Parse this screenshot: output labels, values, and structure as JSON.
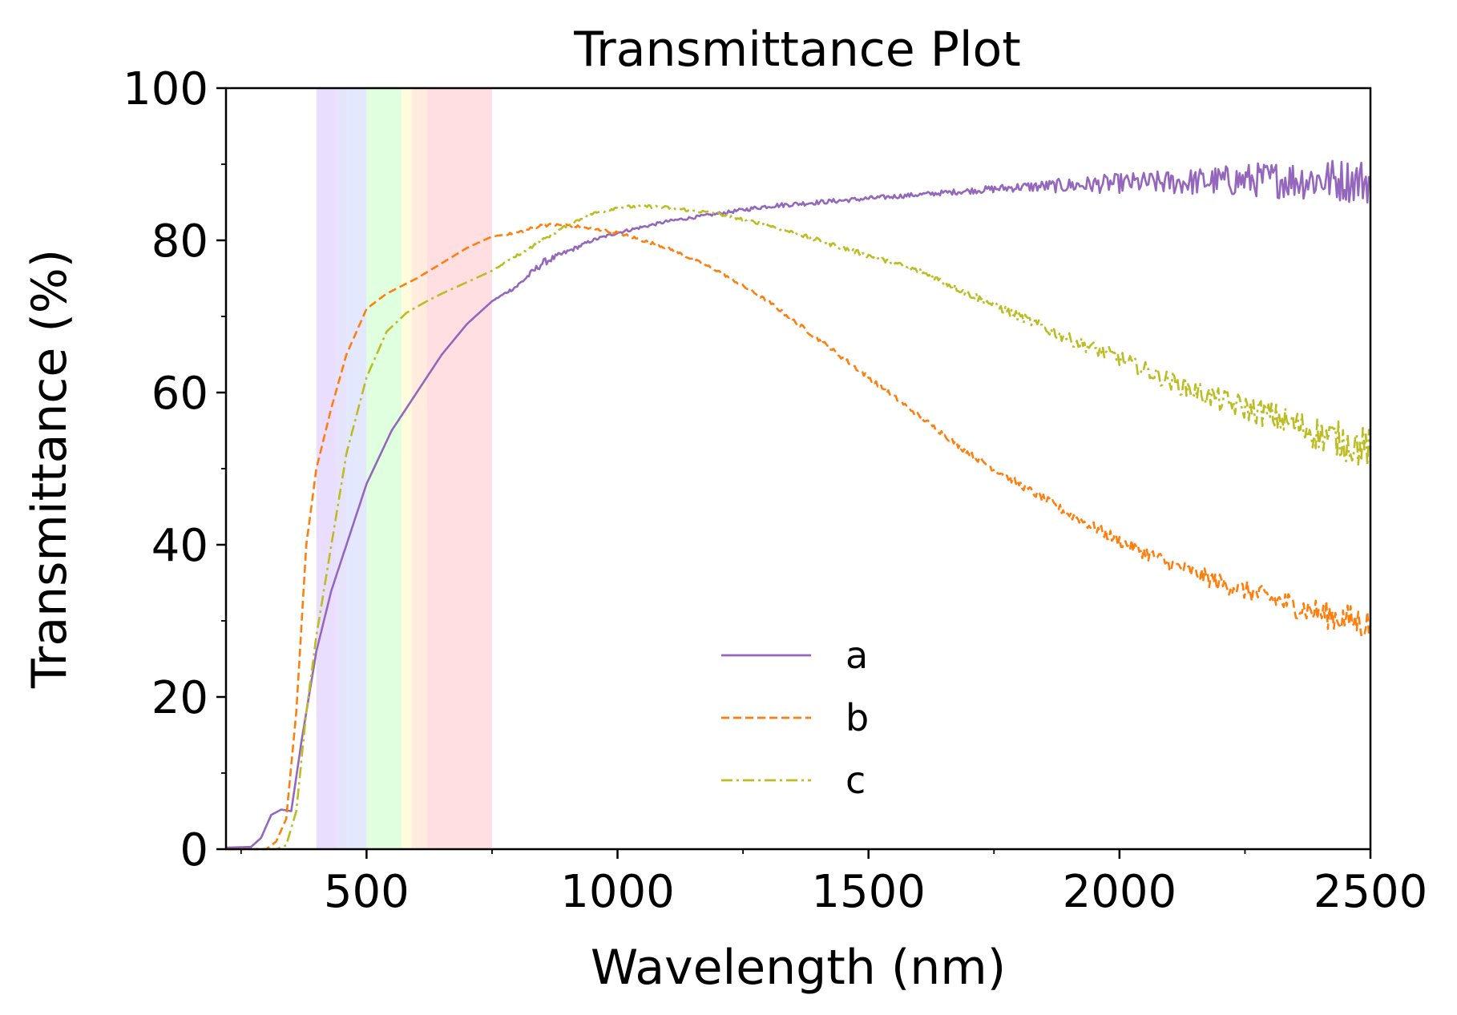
{
  "chart_data": {
    "type": "line",
    "title": "Transmittance Plot",
    "xlabel": "Wavelength (nm)",
    "ylabel": "Transmittance (%)",
    "xlim": [
      220,
      2500
    ],
    "ylim": [
      0,
      100
    ],
    "xticks": [
      500,
      1000,
      1500,
      2000,
      2500
    ],
    "xtick_labels": [
      "500",
      "1000",
      "1500",
      "2000",
      "2500"
    ],
    "yticks": [
      0,
      20,
      40,
      60,
      80,
      100
    ],
    "ytick_labels": [
      "0",
      "20",
      "40",
      "60",
      "80",
      "100"
    ],
    "grid": false,
    "legend": "lower-center",
    "visible_bands": [
      {
        "from": 400,
        "to": 440,
        "color": "#e6d8ff"
      },
      {
        "from": 440,
        "to": 460,
        "color": "#e2def9"
      },
      {
        "from": 460,
        "to": 500,
        "color": "#dfe4ff"
      },
      {
        "from": 500,
        "to": 570,
        "color": "#d9ffd9"
      },
      {
        "from": 570,
        "to": 590,
        "color": "#fffbd8"
      },
      {
        "from": 590,
        "to": 620,
        "color": "#ffe9d9"
      },
      {
        "from": 620,
        "to": 750,
        "color": "#ffd9dd"
      }
    ],
    "series": [
      {
        "name": "a",
        "color": "#9467bd",
        "style": "solid",
        "x": [
          220,
          270,
          290,
          310,
          330,
          350,
          370,
          400,
          430,
          470,
          500,
          550,
          600,
          650,
          700,
          750,
          800,
          850,
          900,
          950,
          1000,
          1100,
          1200,
          1300,
          1400,
          1500,
          1600,
          1700,
          1800,
          1900,
          2000,
          2100,
          2200,
          2300,
          2400,
          2500
        ],
        "y": [
          0.2,
          0.3,
          1.5,
          4.5,
          5.2,
          5.0,
          14,
          26,
          34,
          42,
          48,
          55,
          60,
          65,
          69,
          72,
          74,
          77,
          78.5,
          80,
          81,
          82.5,
          83.5,
          84.5,
          85,
          85.5,
          86,
          86.5,
          87,
          87.2,
          87.5,
          87.6,
          87.8,
          88,
          88,
          87.8
        ],
        "noise": [
          0,
          0,
          0,
          0,
          0,
          0,
          0,
          0,
          0,
          0,
          0,
          0,
          0,
          0,
          0,
          0,
          0.3,
          0.5,
          0.3,
          0.2,
          0.2,
          0.2,
          0.2,
          0.3,
          0.3,
          0.3,
          0.3,
          0.4,
          0.6,
          1.0,
          1.3,
          1.6,
          2.0,
          2.4,
          2.8,
          3.0
        ]
      },
      {
        "name": "b",
        "color": "#ff7f0e",
        "style": "dashed",
        "x": [
          220,
          300,
          320,
          340,
          360,
          380,
          400,
          430,
          460,
          500,
          540,
          600,
          650,
          700,
          750,
          800,
          850,
          900,
          950,
          1000,
          1100,
          1200,
          1300,
          1400,
          1500,
          1600,
          1700,
          1800,
          1900,
          2000,
          2100,
          2200,
          2300,
          2400,
          2500
        ],
        "y": [
          0,
          0,
          1,
          4,
          18,
          40,
          50,
          58,
          65,
          71,
          73,
          75,
          77,
          79,
          80.5,
          81,
          82,
          82,
          81.5,
          81,
          79,
          76,
          72,
          67,
          62,
          57,
          52,
          48,
          44,
          40.5,
          37.5,
          35,
          33,
          31,
          29.5
        ],
        "noise": [
          0,
          0,
          0,
          0,
          0,
          0,
          0,
          0,
          0,
          0,
          0,
          0,
          0,
          0,
          0,
          0.2,
          0.2,
          0.2,
          0.2,
          0.2,
          0.2,
          0.2,
          0.2,
          0.3,
          0.3,
          0.3,
          0.4,
          0.5,
          0.6,
          0.8,
          1.0,
          1.2,
          1.4,
          1.8,
          2.2
        ]
      },
      {
        "name": "c",
        "color": "#bcbd22",
        "style": "dashdot",
        "x": [
          220,
          320,
          340,
          360,
          380,
          400,
          430,
          460,
          500,
          540,
          580,
          620,
          650,
          700,
          750,
          800,
          850,
          900,
          950,
          1000,
          1050,
          1100,
          1200,
          1300,
          1400,
          1500,
          1600,
          1700,
          1800,
          1900,
          2000,
          2100,
          2200,
          2300,
          2400,
          2500
        ],
        "y": [
          0,
          0,
          0.5,
          5,
          18,
          28,
          40,
          52,
          62,
          68,
          70.5,
          72,
          73,
          74.5,
          76,
          78,
          80,
          82,
          83.5,
          84.3,
          84.5,
          84.3,
          83.5,
          82,
          80,
          78,
          76,
          73,
          70,
          67,
          64.5,
          61.5,
          59,
          57,
          54.5,
          52.5
        ],
        "noise": [
          0,
          0,
          0,
          0,
          0,
          0,
          0,
          0,
          0,
          0,
          0,
          0,
          0,
          0,
          0,
          0.2,
          0.2,
          0.2,
          0.2,
          0.2,
          0.2,
          0.2,
          0.2,
          0.2,
          0.3,
          0.3,
          0.4,
          0.5,
          0.6,
          0.8,
          1.0,
          1.2,
          1.5,
          1.8,
          2.3,
          2.8
        ]
      }
    ]
  }
}
